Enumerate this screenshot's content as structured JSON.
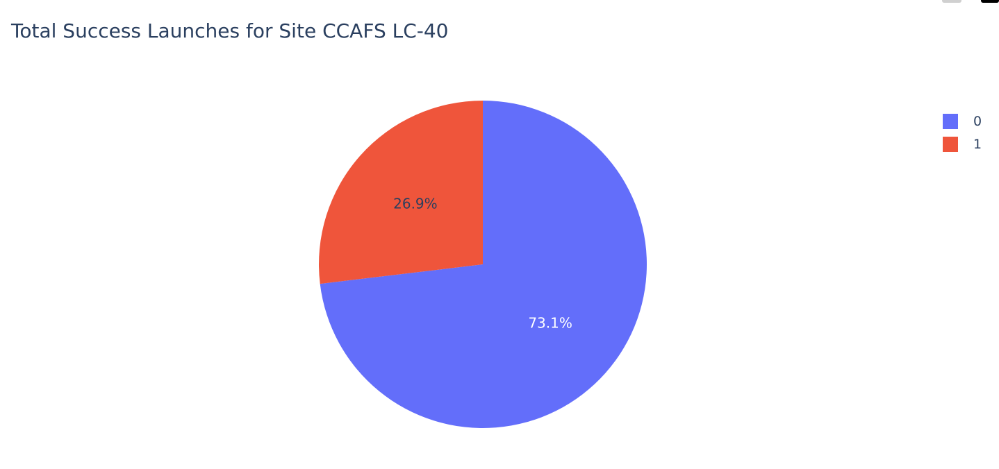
{
  "chart_data": {
    "type": "pie",
    "title": "Total Success Launches for Site CCAFS LC-40",
    "labels": [
      "0",
      "1"
    ],
    "values": [
      73.1,
      26.9
    ],
    "value_labels": [
      "73.1%",
      "26.9%"
    ],
    "colors": [
      "#636efa",
      "#ef553b"
    ],
    "label_colors": [
      "#ffffff",
      "#2a3f5f"
    ],
    "legend_position": "top-right"
  },
  "legend": {
    "items": [
      {
        "label": "0",
        "color": "#636efa"
      },
      {
        "label": "1",
        "color": "#ef553b"
      }
    ]
  }
}
